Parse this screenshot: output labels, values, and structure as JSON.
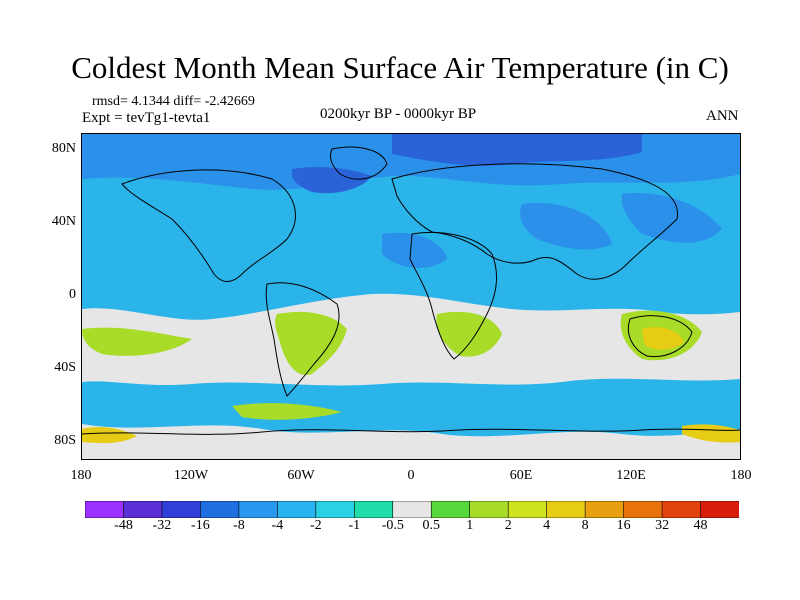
{
  "title": "Coldest Month Mean Surface Air Temperature (in C)",
  "stats": "rmsd= 4.1344 diff= -2.42669",
  "experiment": "Expt = tevTg1-tevta1",
  "period": "0200kyr BP - 0000kyr BP",
  "season": "ANN",
  "map": {
    "lat_ticks": [
      "80N",
      "40N",
      "0",
      "40S",
      "80S"
    ],
    "lon_ticks": [
      "180",
      "120W",
      "60W",
      "0",
      "60E",
      "120E",
      "180"
    ]
  },
  "colorbar": {
    "labels": [
      "-48",
      "-32",
      "-16",
      "-8",
      "-4",
      "-2",
      "-1",
      "-0.5",
      "0.5",
      "1",
      "2",
      "4",
      "8",
      "16",
      "32",
      "48"
    ],
    "colors": [
      "#9b30ff",
      "#5a2fd6",
      "#2f3fd8",
      "#1f6fe0",
      "#2a98ef",
      "#28b4f0",
      "#2ad0e6",
      "#20dca8",
      "#e6e6e6",
      "#58d83a",
      "#a8dc28",
      "#cde41f",
      "#e6cc14",
      "#e8a010",
      "#e8720c",
      "#e2440c",
      "#d81e0a"
    ]
  },
  "colors": {
    "ocean_base": "#2ab4ea",
    "cold": "#2a90ea",
    "very_cold": "#2a62d8",
    "neutral": "#e6e6e6",
    "warm": "#a8dc28",
    "warmer": "#e6cc14"
  }
}
